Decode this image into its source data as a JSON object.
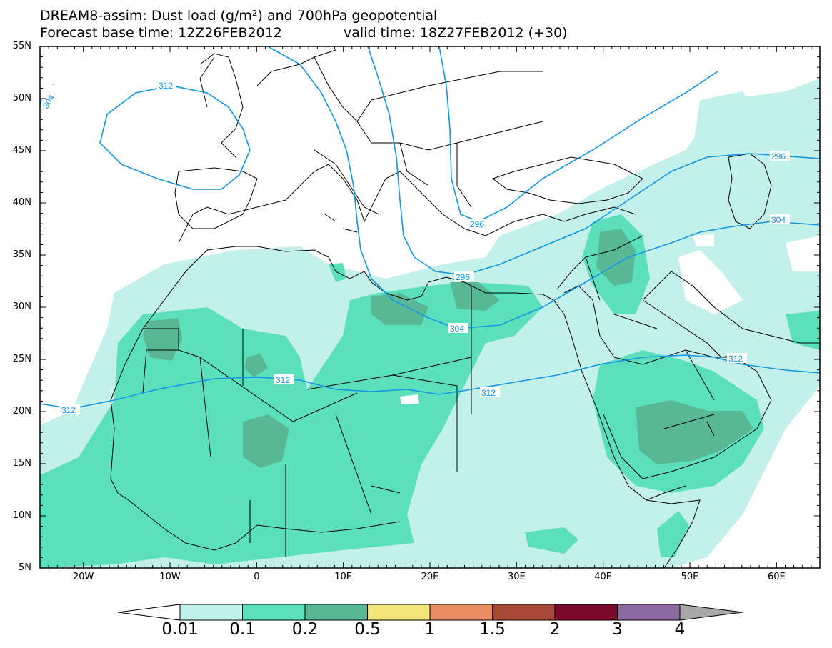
{
  "title": {
    "line1": "DREAM8-assim: Dust load (g/m²) and 700hPa geopotential",
    "line2_base": "Forecast base time: 12Z26FEB2012",
    "line2_valid": "valid time: 18Z27FEB2012 (+30)"
  },
  "map": {
    "lat_labels": [
      "55N",
      "50N",
      "45N",
      "40N",
      "35N",
      "30N",
      "25N",
      "20N",
      "15N",
      "10N",
      "5N"
    ],
    "lon_labels": [
      "20W",
      "10W",
      "0",
      "10E",
      "20E",
      "30E",
      "40E",
      "50E",
      "60E"
    ],
    "contour_labels": [
      "312",
      "304",
      "312",
      "312",
      "312",
      "312",
      "296",
      "296",
      "304",
      "304",
      "296"
    ]
  },
  "colorbar": {
    "labels": [
      "0.01",
      "0.1",
      "0.2",
      "0.5",
      "1",
      "1.5",
      "2",
      "3",
      "4"
    ],
    "colors": [
      "#c3f0eb",
      "#5ce0bb",
      "#58b896",
      "#f2e67a",
      "#e88c64",
      "#a84838",
      "#7e0b2e",
      "#8b6aa0",
      "#a8a8a8"
    ]
  },
  "colors": {
    "contour": "#1496e0",
    "border": "#000000",
    "frame": "#000000"
  }
}
